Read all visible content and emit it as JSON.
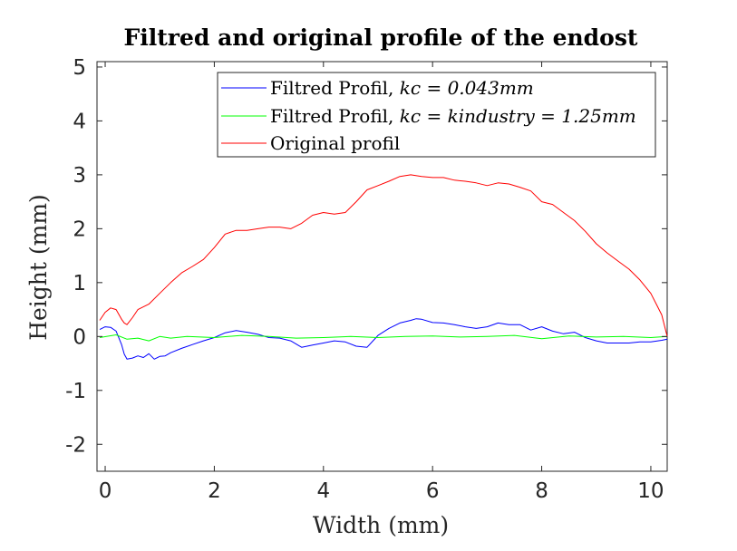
{
  "chart_data": {
    "type": "line",
    "title": "Filtred and original profile of the endost",
    "xlabel": "Width (mm)",
    "ylabel": "Height (mm)",
    "xlim": [
      -0.15,
      10.3
    ],
    "ylim": [
      -2.5,
      5.1
    ],
    "xticks": [
      0,
      2,
      4,
      6,
      8,
      10
    ],
    "xtick_labels": [
      "0",
      "2",
      "4",
      "6",
      "8",
      "10"
    ],
    "yticks": [
      -2,
      -1,
      0,
      1,
      2,
      3,
      4,
      5
    ],
    "ytick_labels": [
      "-2",
      "-1",
      "0",
      "1",
      "2",
      "3",
      "4",
      "5"
    ],
    "grid": false,
    "legend_position": "top-right",
    "series": [
      {
        "name": "Filtred Profil, kc = 0.043mm",
        "legend_plain": "Filtred Profil, ",
        "legend_math": "kc = 0.043mm",
        "color": "#0000ff",
        "x": [
          -0.1,
          0,
          0.1,
          0.2,
          0.3,
          0.35,
          0.4,
          0.5,
          0.6,
          0.7,
          0.8,
          0.9,
          1.0,
          1.1,
          1.2,
          1.4,
          1.6,
          1.8,
          2.0,
          2.2,
          2.4,
          2.6,
          2.8,
          3.0,
          3.2,
          3.4,
          3.6,
          3.8,
          4.0,
          4.2,
          4.4,
          4.6,
          4.8,
          5.0,
          5.2,
          5.4,
          5.6,
          5.7,
          5.8,
          6.0,
          6.2,
          6.4,
          6.6,
          6.8,
          7.0,
          7.2,
          7.4,
          7.6,
          7.8,
          8.0,
          8.2,
          8.4,
          8.6,
          8.8,
          9.0,
          9.2,
          9.4,
          9.6,
          9.8,
          10.0,
          10.2,
          10.3
        ],
        "y": [
          0.13,
          0.18,
          0.17,
          0.1,
          -0.15,
          -0.33,
          -0.42,
          -0.4,
          -0.36,
          -0.39,
          -0.32,
          -0.42,
          -0.37,
          -0.36,
          -0.3,
          -0.22,
          -0.15,
          -0.08,
          -0.02,
          0.07,
          0.11,
          0.08,
          0.04,
          -0.02,
          -0.03,
          -0.08,
          -0.2,
          -0.16,
          -0.12,
          -0.08,
          -0.1,
          -0.18,
          -0.2,
          0.02,
          0.15,
          0.25,
          0.3,
          0.33,
          0.32,
          0.26,
          0.25,
          0.22,
          0.18,
          0.15,
          0.18,
          0.25,
          0.22,
          0.22,
          0.12,
          0.18,
          0.1,
          0.05,
          0.08,
          -0.02,
          -0.08,
          -0.12,
          -0.12,
          -0.12,
          -0.1,
          -0.1,
          -0.07,
          -0.05
        ]
      },
      {
        "name": "Filtred Profil, kc = kindustry = 1.25mm",
        "legend_plain": "Filtred Profil, ",
        "legend_math": "kc = kindustry = 1.25mm",
        "color": "#00ff00",
        "x": [
          -0.1,
          0.2,
          0.4,
          0.6,
          0.8,
          1.0,
          1.2,
          1.5,
          2.0,
          2.5,
          3.0,
          3.5,
          4.0,
          4.5,
          5.0,
          5.5,
          6.0,
          6.5,
          7.0,
          7.5,
          8.0,
          8.5,
          9.0,
          9.5,
          10.0,
          10.3
        ],
        "y": [
          -0.02,
          0.03,
          -0.05,
          -0.03,
          -0.08,
          0.0,
          -0.03,
          0.0,
          -0.02,
          0.02,
          0.0,
          -0.03,
          -0.02,
          0.0,
          -0.02,
          0.0,
          0.01,
          -0.01,
          0.0,
          0.02,
          -0.04,
          0.01,
          -0.01,
          0.0,
          -0.02,
          0.0
        ]
      },
      {
        "name": "Original profil",
        "legend_plain": "Original profil",
        "legend_math": "",
        "color": "#ff0000",
        "x": [
          -0.1,
          0.0,
          0.1,
          0.2,
          0.3,
          0.35,
          0.4,
          0.5,
          0.6,
          0.8,
          1.0,
          1.2,
          1.4,
          1.6,
          1.8,
          2.0,
          2.2,
          2.4,
          2.6,
          2.8,
          3.0,
          3.2,
          3.4,
          3.6,
          3.8,
          4.0,
          4.2,
          4.4,
          4.6,
          4.8,
          5.0,
          5.2,
          5.4,
          5.6,
          5.8,
          6.0,
          6.2,
          6.4,
          6.6,
          6.8,
          7.0,
          7.2,
          7.4,
          7.6,
          7.8,
          8.0,
          8.2,
          8.4,
          8.6,
          8.8,
          9.0,
          9.2,
          9.4,
          9.6,
          9.8,
          10.0,
          10.1,
          10.2,
          10.25,
          10.3
        ],
        "y": [
          0.3,
          0.45,
          0.53,
          0.5,
          0.32,
          0.25,
          0.22,
          0.35,
          0.5,
          0.6,
          0.8,
          1.0,
          1.18,
          1.3,
          1.43,
          1.65,
          1.9,
          1.97,
          1.97,
          2.0,
          2.03,
          2.03,
          2.0,
          2.1,
          2.25,
          2.3,
          2.27,
          2.3,
          2.5,
          2.72,
          2.8,
          2.88,
          2.97,
          3.0,
          2.97,
          2.95,
          2.95,
          2.9,
          2.88,
          2.85,
          2.8,
          2.85,
          2.83,
          2.77,
          2.7,
          2.5,
          2.45,
          2.3,
          2.15,
          1.95,
          1.72,
          1.55,
          1.4,
          1.25,
          1.05,
          0.8,
          0.6,
          0.4,
          0.2,
          0.0
        ]
      }
    ]
  }
}
